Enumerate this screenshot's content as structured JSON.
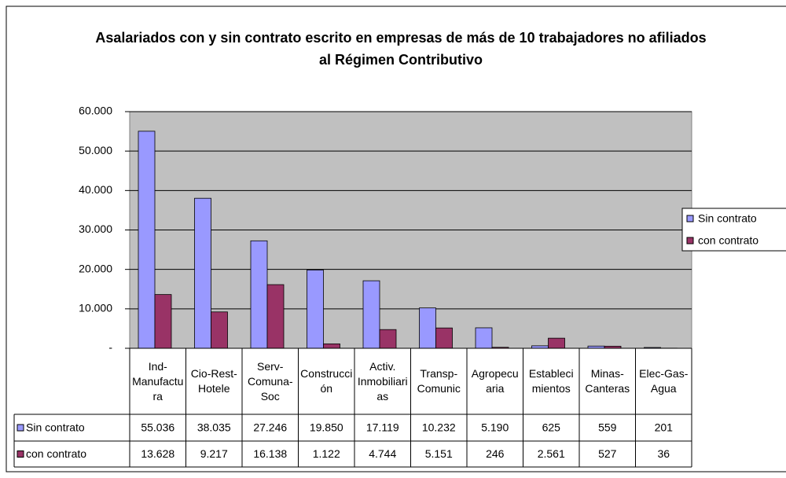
{
  "chart_data": {
    "type": "bar",
    "title": "Asalariados con y sin contrato escrito en empresas de más de 10 trabajadores no afiliados al Régimen Contributivo",
    "categories": [
      "Ind-Manufactura",
      "Cio-Rest-Hotele",
      "Serv-Comuna-Soc",
      "Construcción",
      "Activ. Inmobiliarias",
      "Transp-Comunic",
      "Agropecuaria",
      "Establecimientos",
      "Minas-Canteras",
      "Elec-Gas-Agua"
    ],
    "series": [
      {
        "name": "Sin contrato",
        "color": "#9999ff",
        "values": [
          55036,
          38035,
          27246,
          19850,
          17119,
          10232,
          5190,
          625,
          559,
          201
        ],
        "value_labels": [
          "55.036",
          "38.035",
          "27.246",
          "19.850",
          "17.119",
          "10.232",
          "5.190",
          "625",
          "559",
          "201"
        ]
      },
      {
        "name": "con contrato",
        "color": "#993366",
        "values": [
          13628,
          9217,
          16138,
          1122,
          4744,
          5151,
          246,
          2561,
          527,
          36
        ],
        "value_labels": [
          "13.628",
          "9.217",
          "16.138",
          "1.122",
          "4.744",
          "5.151",
          "246",
          "2.561",
          "527",
          "36"
        ]
      }
    ],
    "ylim": [
      0,
      60000
    ],
    "yticks": [
      {
        "value": 0,
        "label": "-"
      },
      {
        "value": 10000,
        "label": "10.000"
      },
      {
        "value": 20000,
        "label": "20.000"
      },
      {
        "value": 30000,
        "label": "30.000"
      },
      {
        "value": 40000,
        "label": "40.000"
      },
      {
        "value": 50000,
        "label": "50.000"
      },
      {
        "value": 60000,
        "label": "60.000"
      }
    ],
    "grid": true,
    "legend": "right",
    "plot_background": "#c0c0c0"
  }
}
